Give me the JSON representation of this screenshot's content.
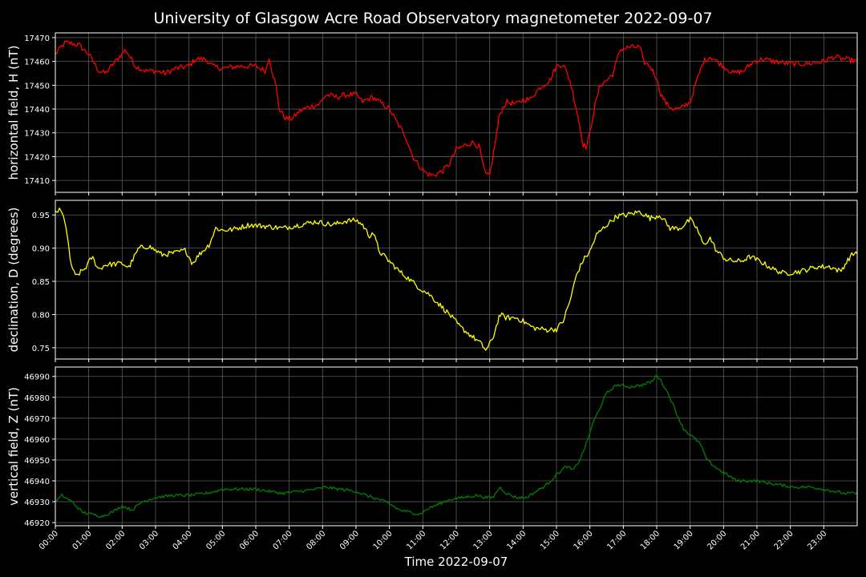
{
  "chart_data": {
    "type": "line",
    "title": "University of Glasgow Acre Road Observatory magnetometer 2022-09-07",
    "xlabel": "Time 2022-09-07",
    "x_range_hours": [
      0,
      24
    ],
    "x_ticks": [
      "00:00",
      "01:00",
      "02:00",
      "03:00",
      "04:00",
      "05:00",
      "06:00",
      "07:00",
      "08:00",
      "09:00",
      "10:00",
      "11:00",
      "12:00",
      "13:00",
      "14:00",
      "15:00",
      "16:00",
      "17:00",
      "18:00",
      "19:00",
      "20:00",
      "21:00",
      "22:00",
      "23:00"
    ],
    "grid": true,
    "background": "#000000",
    "panels": [
      {
        "ylabel": "horizontal field, H (nT)",
        "color": "#ff0000",
        "ylim": [
          17405,
          17472
        ],
        "yticks": [
          17410,
          17420,
          17430,
          17440,
          17450,
          17460,
          17470
        ],
        "decimals": 0,
        "noise": 1.2,
        "points": [
          [
            0,
            17463
          ],
          [
            0.3,
            17468
          ],
          [
            0.7,
            17467
          ],
          [
            1,
            17463
          ],
          [
            1.3,
            17456
          ],
          [
            1.5,
            17455
          ],
          [
            1.8,
            17460
          ],
          [
            2.1,
            17465
          ],
          [
            2.4,
            17458
          ],
          [
            2.7,
            17456
          ],
          [
            3.0,
            17456
          ],
          [
            3.3,
            17455
          ],
          [
            3.6,
            17457
          ],
          [
            4.0,
            17458
          ],
          [
            4.2,
            17461
          ],
          [
            4.5,
            17461
          ],
          [
            4.7,
            17458
          ],
          [
            5.0,
            17457
          ],
          [
            5.5,
            17458
          ],
          [
            6.0,
            17458
          ],
          [
            6.3,
            17456
          ],
          [
            6.4,
            17462
          ],
          [
            6.5,
            17455
          ],
          [
            6.6,
            17450
          ],
          [
            6.7,
            17440
          ],
          [
            6.9,
            17436
          ],
          [
            7.1,
            17436
          ],
          [
            7.3,
            17439
          ],
          [
            7.6,
            17441
          ],
          [
            7.9,
            17442
          ],
          [
            8.1,
            17446
          ],
          [
            8.4,
            17445
          ],
          [
            8.7,
            17446
          ],
          [
            9.0,
            17446
          ],
          [
            9.2,
            17443
          ],
          [
            9.5,
            17445
          ],
          [
            9.7,
            17443
          ],
          [
            10.0,
            17440
          ],
          [
            10.2,
            17435
          ],
          [
            10.5,
            17428
          ],
          [
            10.7,
            17420
          ],
          [
            10.9,
            17416
          ],
          [
            11.1,
            17413
          ],
          [
            11.3,
            17412
          ],
          [
            11.6,
            17414
          ],
          [
            11.8,
            17417
          ],
          [
            12.0,
            17423
          ],
          [
            12.3,
            17425
          ],
          [
            12.5,
            17426
          ],
          [
            12.7,
            17424
          ],
          [
            12.8,
            17416
          ],
          [
            12.9,
            17412
          ],
          [
            13.0,
            17412
          ],
          [
            13.1,
            17420
          ],
          [
            13.3,
            17438
          ],
          [
            13.5,
            17443
          ],
          [
            13.8,
            17442
          ],
          [
            14.0,
            17444
          ],
          [
            14.2,
            17444
          ],
          [
            14.5,
            17449
          ],
          [
            14.8,
            17452
          ],
          [
            15.0,
            17458
          ],
          [
            15.2,
            17459
          ],
          [
            15.4,
            17452
          ],
          [
            15.6,
            17440
          ],
          [
            15.8,
            17425
          ],
          [
            15.9,
            17424
          ],
          [
            16.0,
            17430
          ],
          [
            16.1,
            17438
          ],
          [
            16.3,
            17450
          ],
          [
            16.5,
            17452
          ],
          [
            16.7,
            17455
          ],
          [
            16.9,
            17465
          ],
          [
            17.2,
            17466
          ],
          [
            17.5,
            17466
          ],
          [
            17.6,
            17460
          ],
          [
            17.8,
            17458
          ],
          [
            18.0,
            17453
          ],
          [
            18.1,
            17447
          ],
          [
            18.3,
            17442
          ],
          [
            18.5,
            17440
          ],
          [
            18.7,
            17440
          ],
          [
            19.0,
            17443
          ],
          [
            19.2,
            17452
          ],
          [
            19.4,
            17460
          ],
          [
            19.6,
            17462
          ],
          [
            19.9,
            17459
          ],
          [
            20.1,
            17457
          ],
          [
            20.3,
            17455
          ],
          [
            20.6,
            17456
          ],
          [
            20.9,
            17460
          ],
          [
            21.2,
            17461
          ],
          [
            21.5,
            17460
          ],
          [
            22.0,
            17459
          ],
          [
            22.5,
            17459
          ],
          [
            23.0,
            17460
          ],
          [
            23.3,
            17462
          ],
          [
            23.6,
            17461
          ],
          [
            24,
            17460
          ]
        ]
      },
      {
        "ylabel": "declination, D (degrees)",
        "color": "#ffff00",
        "ylim": [
          0.733,
          0.972
        ],
        "yticks": [
          0.75,
          0.8,
          0.85,
          0.9,
          0.95
        ],
        "decimals": 2,
        "noise": 0.004,
        "points": [
          [
            0,
            0.955
          ],
          [
            0.15,
            0.957
          ],
          [
            0.3,
            0.94
          ],
          [
            0.45,
            0.88
          ],
          [
            0.6,
            0.857
          ],
          [
            0.9,
            0.87
          ],
          [
            1.1,
            0.887
          ],
          [
            1.3,
            0.868
          ],
          [
            1.5,
            0.875
          ],
          [
            2.0,
            0.877
          ],
          [
            2.2,
            0.871
          ],
          [
            2.5,
            0.9
          ],
          [
            2.8,
            0.903
          ],
          [
            3.2,
            0.89
          ],
          [
            3.6,
            0.893
          ],
          [
            3.9,
            0.897
          ],
          [
            4.1,
            0.877
          ],
          [
            4.3,
            0.89
          ],
          [
            4.6,
            0.905
          ],
          [
            4.8,
            0.93
          ],
          [
            5.0,
            0.927
          ],
          [
            5.3,
            0.928
          ],
          [
            5.8,
            0.935
          ],
          [
            6.3,
            0.933
          ],
          [
            6.8,
            0.93
          ],
          [
            7.3,
            0.935
          ],
          [
            7.8,
            0.94
          ],
          [
            8.3,
            0.935
          ],
          [
            8.7,
            0.941
          ],
          [
            9.0,
            0.942
          ],
          [
            9.2,
            0.935
          ],
          [
            9.4,
            0.918
          ],
          [
            9.5,
            0.925
          ],
          [
            9.7,
            0.895
          ],
          [
            10.0,
            0.88
          ],
          [
            10.3,
            0.865
          ],
          [
            10.6,
            0.853
          ],
          [
            10.9,
            0.84
          ],
          [
            11.2,
            0.83
          ],
          [
            11.5,
            0.815
          ],
          [
            11.8,
            0.8
          ],
          [
            12.1,
            0.782
          ],
          [
            12.4,
            0.77
          ],
          [
            12.7,
            0.758
          ],
          [
            12.9,
            0.746
          ],
          [
            13.1,
            0.765
          ],
          [
            13.3,
            0.8
          ],
          [
            13.5,
            0.795
          ],
          [
            13.8,
            0.795
          ],
          [
            14.0,
            0.79
          ],
          [
            14.3,
            0.78
          ],
          [
            14.7,
            0.777
          ],
          [
            15.0,
            0.778
          ],
          [
            15.2,
            0.79
          ],
          [
            15.4,
            0.82
          ],
          [
            15.6,
            0.86
          ],
          [
            15.8,
            0.882
          ],
          [
            16.0,
            0.895
          ],
          [
            16.2,
            0.92
          ],
          [
            16.5,
            0.935
          ],
          [
            16.8,
            0.948
          ],
          [
            17.1,
            0.95
          ],
          [
            17.5,
            0.955
          ],
          [
            17.8,
            0.945
          ],
          [
            18.1,
            0.95
          ],
          [
            18.4,
            0.93
          ],
          [
            18.7,
            0.93
          ],
          [
            19.0,
            0.943
          ],
          [
            19.2,
            0.93
          ],
          [
            19.4,
            0.905
          ],
          [
            19.6,
            0.915
          ],
          [
            19.8,
            0.895
          ],
          [
            20.1,
            0.882
          ],
          [
            20.5,
            0.88
          ],
          [
            20.8,
            0.887
          ],
          [
            21.1,
            0.88
          ],
          [
            21.5,
            0.868
          ],
          [
            21.8,
            0.862
          ],
          [
            22.3,
            0.865
          ],
          [
            22.8,
            0.872
          ],
          [
            23.2,
            0.872
          ],
          [
            23.5,
            0.865
          ],
          [
            23.8,
            0.888
          ],
          [
            24,
            0.895
          ]
        ]
      },
      {
        "ylabel": "vertical field, Z (nT)",
        "color": "#008000",
        "ylim": [
          46918.5,
          46994.5
        ],
        "yticks": [
          46920,
          46930,
          46940,
          46950,
          46960,
          46970,
          46980,
          46990
        ],
        "decimals": 0,
        "noise": 0.7,
        "points": [
          [
            0,
            46930
          ],
          [
            0.2,
            46933
          ],
          [
            0.5,
            46930
          ],
          [
            0.8,
            46925
          ],
          [
            1.1,
            46924
          ],
          [
            1.4,
            46923
          ],
          [
            1.7,
            46925
          ],
          [
            2.0,
            46928
          ],
          [
            2.3,
            46926
          ],
          [
            2.6,
            46930
          ],
          [
            3.0,
            46932
          ],
          [
            3.5,
            46933
          ],
          [
            4.0,
            46933
          ],
          [
            4.5,
            46934
          ],
          [
            4.8,
            46935
          ],
          [
            5.0,
            46936
          ],
          [
            5.5,
            46936
          ],
          [
            6.0,
            46936
          ],
          [
            6.4,
            46935
          ],
          [
            6.8,
            46934
          ],
          [
            7.3,
            46935
          ],
          [
            7.8,
            46936
          ],
          [
            8.1,
            46937
          ],
          [
            8.5,
            46936
          ],
          [
            9.0,
            46935
          ],
          [
            9.3,
            46933
          ],
          [
            9.7,
            46931
          ],
          [
            10.0,
            46929
          ],
          [
            10.3,
            46926
          ],
          [
            10.6,
            46925
          ],
          [
            10.9,
            46924
          ],
          [
            11.2,
            46927
          ],
          [
            11.5,
            46929
          ],
          [
            11.8,
            46931
          ],
          [
            12.2,
            46932
          ],
          [
            12.6,
            46933
          ],
          [
            12.9,
            46932
          ],
          [
            13.1,
            46932
          ],
          [
            13.3,
            46937
          ],
          [
            13.5,
            46934
          ],
          [
            13.8,
            46932
          ],
          [
            14.1,
            46932
          ],
          [
            14.4,
            46935
          ],
          [
            14.7,
            46938
          ],
          [
            15.0,
            46943
          ],
          [
            15.3,
            46947
          ],
          [
            15.5,
            46945
          ],
          [
            15.7,
            46950
          ],
          [
            15.9,
            46958
          ],
          [
            16.1,
            46968
          ],
          [
            16.3,
            46975
          ],
          [
            16.5,
            46982
          ],
          [
            16.8,
            46986
          ],
          [
            17.2,
            46985
          ],
          [
            17.6,
            46986
          ],
          [
            17.9,
            46988
          ],
          [
            18.0,
            46991
          ],
          [
            18.2,
            46986
          ],
          [
            18.4,
            46980
          ],
          [
            18.6,
            46972
          ],
          [
            18.8,
            46965
          ],
          [
            19.0,
            46962
          ],
          [
            19.3,
            46958
          ],
          [
            19.5,
            46950
          ],
          [
            19.8,
            46946
          ],
          [
            20.1,
            46943
          ],
          [
            20.4,
            46940
          ],
          [
            20.7,
            46940
          ],
          [
            21.0,
            46940
          ],
          [
            21.3,
            46939
          ],
          [
            21.7,
            46938
          ],
          [
            22.1,
            46937
          ],
          [
            22.6,
            46937
          ],
          [
            23.0,
            46936
          ],
          [
            23.3,
            46935
          ],
          [
            23.6,
            46934
          ],
          [
            24,
            46934
          ]
        ]
      }
    ]
  }
}
